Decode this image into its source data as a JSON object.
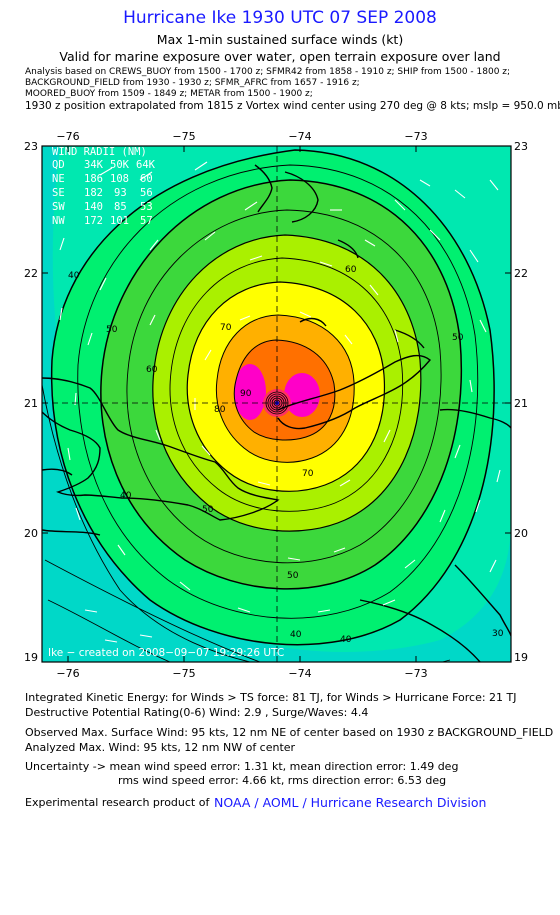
{
  "header": {
    "title": "Hurricane Ike 1930 UTC 07 SEP 2008",
    "subtitle": "Max 1-min sustained surface winds (kt)",
    "valid_note": "Valid for marine exposure over water, open terrain exposure over land"
  },
  "analysis_lines": [
    "Analysis based on  CREWS_BUOY from 1500 - 1700 z;  SFMR42 from 1858 - 1910 z;  SHIP from 1500 - 1800 z;",
    "BACKGROUND_FIELD from 1930 - 1930 z;  SFMR_AFRC from 1657 - 1916 z;",
    "MOORED_BUOY from 1509 - 1849 z;  METAR from 1500 - 1900 z;"
  ],
  "position_note": "1930 z position extrapolated from 1815 z Vortex wind center using 270 deg @ 8 kts; mslp = 950.0 mb",
  "map": {
    "lon_labels": [
      "−76",
      "−75",
      "−74",
      "−73"
    ],
    "lat_labels": [
      "23",
      "22",
      "21",
      "20",
      "19"
    ],
    "contour_labels": [
      "40",
      "50",
      "60",
      "70",
      "80",
      "90",
      "40",
      "50",
      "60",
      "70",
      "40",
      "50",
      "30"
    ],
    "wind_radii": {
      "title": "WIND RADII (NM)",
      "header": [
        "QD",
        "34K",
        "50K",
        "64K"
      ],
      "rows": [
        [
          "NE",
          "186",
          "108",
          "60"
        ],
        [
          "SE",
          "182",
          "93",
          "56"
        ],
        [
          "SW",
          "140",
          "85",
          "53"
        ],
        [
          "NW",
          "172",
          "101",
          "57"
        ]
      ]
    },
    "created_note": "Ike − created on 2008−09−07 19:29:26 UTC",
    "colors": {
      "ocean": "#00d8c8",
      "c30": "#00e8b0",
      "c40": "#00f070",
      "c50": "#3cd83c",
      "c60": "#aaf000",
      "c70": "#ffff00",
      "c80": "#ffb000",
      "c90": "#ff7000",
      "c100": "#ff3060",
      "core": "#ff00c8"
    }
  },
  "stats": {
    "ike": "Integrated Kinetic Energy:  for Winds > TS force: 81 TJ,  for Winds > Hurricane Force: 21 TJ",
    "dpr": "Destructive Potential Rating(0-6)   Wind: 2.9 , Surge/Waves: 4.4",
    "observed": "Observed Max. Surface Wind: 95 kts, 12 nm NE of center based on 1930 z BACKGROUND_FIELD",
    "analyzed": "Analyzed Max. Wind: 95 kts, 12 nm NW of center",
    "uncertainty_1": "Uncertainty -> mean wind speed error: 1.31 kt,   mean direction error: 1.49 deg",
    "uncertainty_2": "rms wind speed error: 4.66 kt,   rms direction error: 6.53 deg"
  },
  "credit": {
    "prefix": "Experimental research product of",
    "org": "NOAA / AOML / Hurricane Research Division"
  }
}
